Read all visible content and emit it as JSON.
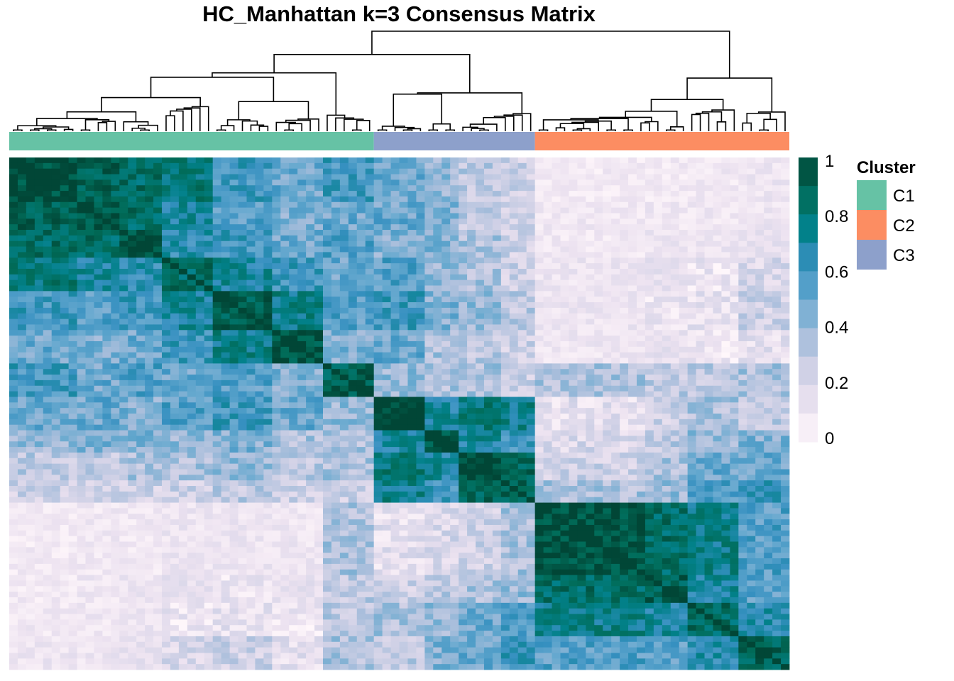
{
  "chart_data": {
    "type": "heatmap",
    "title": "HC_Manhattan k=3 Consensus Matrix",
    "n_samples": 92,
    "clusters": [
      {
        "label": "C1",
        "size": 43,
        "color": "#66C2A5"
      },
      {
        "label": "C3",
        "size": 19,
        "color": "#8DA0CB"
      },
      {
        "label": "C2",
        "size": 30,
        "color": "#FC8D62"
      }
    ],
    "column_order_cluster_sequence": [
      "C1",
      "C3",
      "C2"
    ],
    "color_scale": {
      "min": 0,
      "max": 1,
      "ticks": [
        "1",
        "0.8",
        "0.6",
        "0.4",
        "0.2",
        "0"
      ],
      "colors": [
        "#FFF7FB",
        "#ECE2F0",
        "#D0D1E6",
        "#A6BDDB",
        "#67A9CF",
        "#3690C0",
        "#02818A",
        "#016C59",
        "#014636"
      ]
    },
    "sub_blocks": [
      {
        "cluster": "C1",
        "size": 8,
        "within": 0.98
      },
      {
        "cluster": "C1",
        "size": 5,
        "within": 0.95
      },
      {
        "cluster": "C1",
        "size": 5,
        "within": 0.96
      },
      {
        "cluster": "C1",
        "size": 6,
        "within": 0.85
      },
      {
        "cluster": "C1",
        "size": 7,
        "within": 0.92
      },
      {
        "cluster": "C1",
        "size": 6,
        "within": 0.95
      },
      {
        "cluster": "C1",
        "size": 6,
        "within": 0.9
      },
      {
        "cluster": "C3",
        "size": 6,
        "within": 0.95
      },
      {
        "cluster": "C3",
        "size": 4,
        "within": 0.95
      },
      {
        "cluster": "C3",
        "size": 5,
        "within": 0.98
      },
      {
        "cluster": "C3",
        "size": 4,
        "within": 0.9
      },
      {
        "cluster": "C2",
        "size": 13,
        "within": 0.97
      },
      {
        "cluster": "C2",
        "size": 5,
        "within": 0.9
      },
      {
        "cluster": "C2",
        "size": 6,
        "within": 0.85
      },
      {
        "cluster": "C2",
        "size": 6,
        "within": 0.9
      }
    ],
    "sub_block_consensus": [
      [
        0.98,
        0.9,
        0.85,
        0.8,
        0.6,
        0.5,
        0.6,
        0.5,
        0.4,
        0.3,
        0.25,
        0.02,
        0.02,
        0.03,
        0.05
      ],
      [
        0.9,
        0.95,
        0.85,
        0.7,
        0.55,
        0.45,
        0.5,
        0.5,
        0.45,
        0.3,
        0.25,
        0.03,
        0.04,
        0.04,
        0.05
      ],
      [
        0.85,
        0.85,
        0.96,
        0.65,
        0.6,
        0.5,
        0.55,
        0.45,
        0.45,
        0.35,
        0.25,
        0.03,
        0.05,
        0.05,
        0.08
      ],
      [
        0.8,
        0.7,
        0.65,
        0.85,
        0.7,
        0.6,
        0.5,
        0.55,
        0.4,
        0.35,
        0.25,
        0.05,
        0.08,
        0.1,
        0.2
      ],
      [
        0.6,
        0.55,
        0.6,
        0.7,
        0.92,
        0.75,
        0.55,
        0.6,
        0.45,
        0.4,
        0.3,
        0.05,
        0.1,
        0.15,
        0.25
      ],
      [
        0.5,
        0.45,
        0.5,
        0.6,
        0.75,
        0.95,
        0.45,
        0.5,
        0.35,
        0.3,
        0.25,
        0.04,
        0.08,
        0.1,
        0.15
      ],
      [
        0.6,
        0.5,
        0.55,
        0.5,
        0.55,
        0.45,
        0.9,
        0.4,
        0.35,
        0.35,
        0.25,
        0.35,
        0.3,
        0.3,
        0.35
      ],
      [
        0.5,
        0.5,
        0.45,
        0.55,
        0.6,
        0.5,
        0.4,
        0.95,
        0.7,
        0.8,
        0.75,
        0.15,
        0.25,
        0.35,
        0.3
      ],
      [
        0.4,
        0.45,
        0.45,
        0.4,
        0.45,
        0.35,
        0.35,
        0.7,
        0.95,
        0.7,
        0.6,
        0.2,
        0.3,
        0.4,
        0.45
      ],
      [
        0.3,
        0.3,
        0.35,
        0.35,
        0.4,
        0.3,
        0.35,
        0.8,
        0.7,
        0.98,
        0.9,
        0.25,
        0.35,
        0.5,
        0.5
      ],
      [
        0.25,
        0.25,
        0.25,
        0.25,
        0.3,
        0.25,
        0.25,
        0.75,
        0.6,
        0.9,
        0.9,
        0.35,
        0.4,
        0.55,
        0.6
      ],
      [
        0.02,
        0.03,
        0.03,
        0.05,
        0.05,
        0.04,
        0.35,
        0.15,
        0.2,
        0.25,
        0.35,
        0.97,
        0.85,
        0.75,
        0.55
      ],
      [
        0.02,
        0.04,
        0.05,
        0.08,
        0.1,
        0.08,
        0.3,
        0.25,
        0.3,
        0.35,
        0.4,
        0.85,
        0.9,
        0.7,
        0.55
      ],
      [
        0.03,
        0.04,
        0.05,
        0.1,
        0.15,
        0.1,
        0.3,
        0.35,
        0.4,
        0.5,
        0.55,
        0.75,
        0.7,
        0.85,
        0.65
      ],
      [
        0.05,
        0.05,
        0.08,
        0.2,
        0.25,
        0.15,
        0.35,
        0.3,
        0.45,
        0.5,
        0.6,
        0.55,
        0.55,
        0.65,
        0.9
      ]
    ]
  },
  "legend": {
    "cluster_title": "Cluster",
    "entries": [
      {
        "label": "C1",
        "color": "#66C2A5"
      },
      {
        "label": "C2",
        "color": "#FC8D62"
      },
      {
        "label": "C3",
        "color": "#8DA0CB"
      }
    ]
  }
}
